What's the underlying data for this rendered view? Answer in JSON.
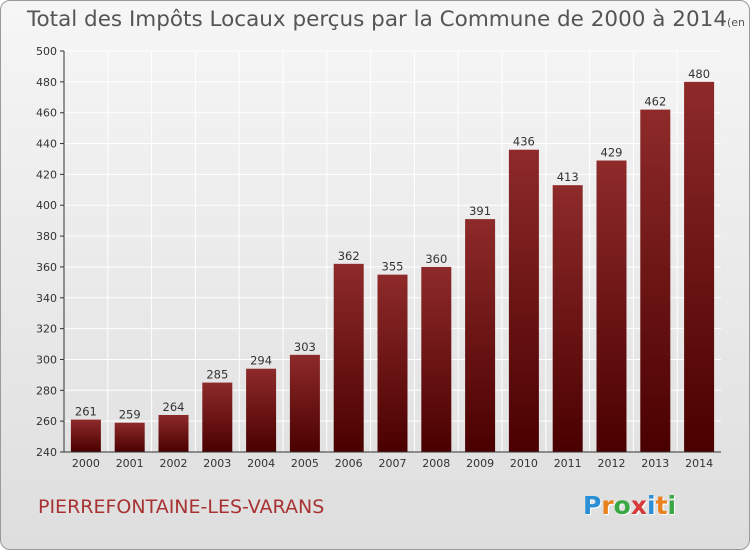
{
  "header": {
    "title": "Total des Impôts Locaux perçus par la Commune de 2000 à 2014",
    "unit": "(en milliers d'€)"
  },
  "footer": {
    "commune": "PIERREFONTAINE-LES-VARANS",
    "logo_letters": [
      "P",
      "r",
      "o",
      "x",
      "i",
      "t",
      "i"
    ],
    "logo_colors": [
      "#2a8fd6",
      "#e9821c",
      "#3aa845",
      "#d63a3a",
      "#2a8fd6",
      "#e9821c",
      "#3aa845"
    ]
  },
  "colors": {
    "bar_top": "#8e2a2a",
    "bar_bottom": "#4a0000",
    "axis": "#333333",
    "grid": "#ffffff"
  },
  "chart_data": {
    "type": "bar",
    "categories": [
      "2000",
      "2001",
      "2002",
      "2003",
      "2004",
      "2005",
      "2006",
      "2007",
      "2008",
      "2009",
      "2010",
      "2011",
      "2012",
      "2013",
      "2014"
    ],
    "values": [
      261,
      259,
      264,
      285,
      294,
      303,
      362,
      355,
      360,
      391,
      436,
      413,
      429,
      462,
      480
    ],
    "data_labels": [
      "261",
      "259",
      "264",
      "285",
      "294",
      "303",
      "362",
      "355",
      "360",
      "391",
      "436",
      "413",
      "429",
      "462",
      "480"
    ],
    "y_ticks": [
      240,
      260,
      280,
      300,
      320,
      340,
      360,
      380,
      400,
      420,
      440,
      460,
      480,
      500
    ],
    "ylim": [
      240,
      500
    ],
    "grid": true
  }
}
